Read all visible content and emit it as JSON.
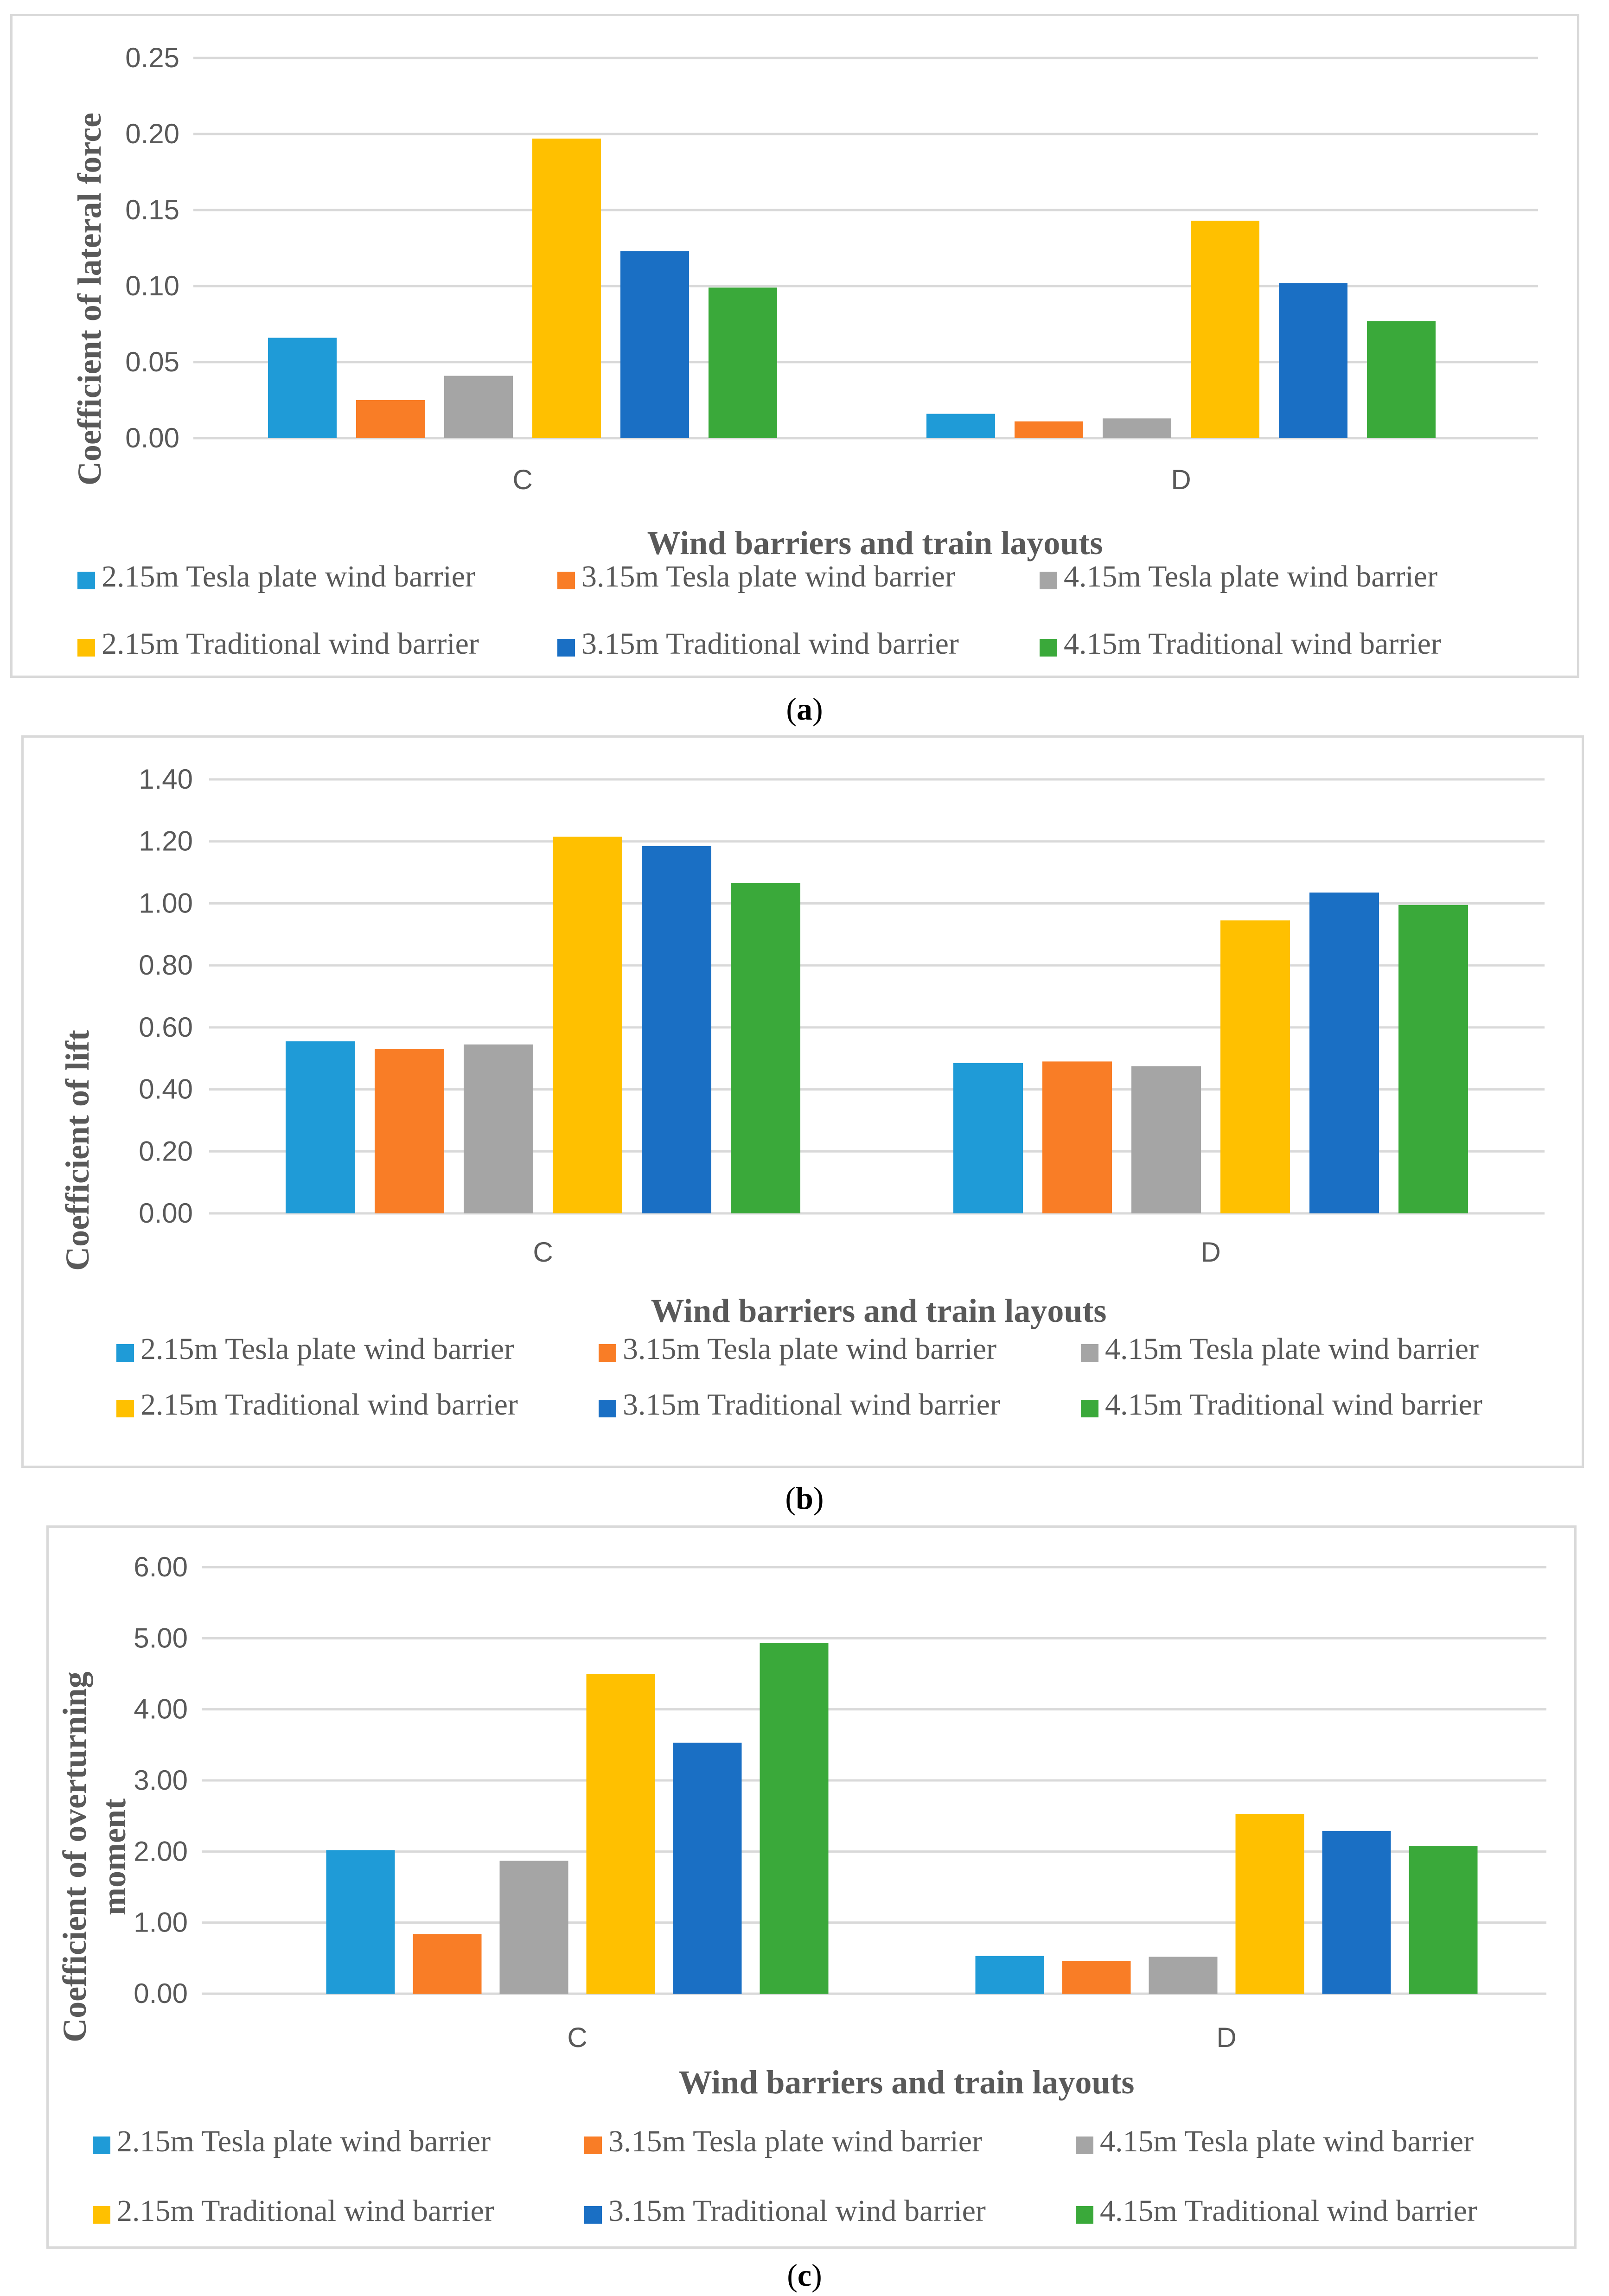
{
  "chart_data": [
    {
      "type": "bar",
      "panel": "a",
      "categories": [
        "C",
        "D"
      ],
      "ylabel": "Coefficient of lateral force",
      "xlabel": "Wind barriers and train layouts",
      "ylim": [
        0,
        0.25
      ],
      "yticks": [
        "0.00",
        "0.05",
        "0.10",
        "0.15",
        "0.20",
        "0.25"
      ],
      "series": [
        {
          "name": "2.15m Tesla plate wind barrier",
          "color": "#1f9bd7",
          "values": [
            0.066,
            0.016
          ]
        },
        {
          "name": "3.15m Tesla plate wind barrier",
          "color": "#f97d26",
          "values": [
            0.025,
            0.011
          ]
        },
        {
          "name": "4.15m Tesla plate wind barrier",
          "color": "#a5a5a5",
          "values": [
            0.041,
            0.013
          ]
        },
        {
          "name": "2.15m Traditional wind barrier",
          "color": "#ffc000",
          "values": [
            0.197,
            0.143
          ]
        },
        {
          "name": "3.15m Traditional wind barrier",
          "color": "#1a6fc4",
          "values": [
            0.123,
            0.102
          ]
        },
        {
          "name": "4.15m Traditional wind barrier",
          "color": "#3aa93a",
          "values": [
            0.099,
            0.077
          ]
        }
      ],
      "caption": "a"
    },
    {
      "type": "bar",
      "panel": "b",
      "categories": [
        "C",
        "D"
      ],
      "ylabel": "Coefficient of lift",
      "xlabel": "Wind barriers and train layouts",
      "ylim": [
        0,
        1.4
      ],
      "yticks": [
        "0.00",
        "0.20",
        "0.40",
        "0.60",
        "0.80",
        "1.00",
        "1.20",
        "1.40"
      ],
      "series": [
        {
          "name": "2.15m Tesla plate wind barrier",
          "color": "#1f9bd7",
          "values": [
            0.555,
            0.485
          ]
        },
        {
          "name": "3.15m Tesla plate wind barrier",
          "color": "#f97d26",
          "values": [
            0.53,
            0.49
          ]
        },
        {
          "name": "4.15m Tesla plate wind barrier",
          "color": "#a5a5a5",
          "values": [
            0.545,
            0.475
          ]
        },
        {
          "name": "2.15m Traditional wind barrier",
          "color": "#ffc000",
          "values": [
            1.215,
            0.945
          ]
        },
        {
          "name": "3.15m Traditional wind barrier",
          "color": "#1a6fc4",
          "values": [
            1.185,
            1.035
          ]
        },
        {
          "name": "4.15m Traditional wind barrier",
          "color": "#3aa93a",
          "values": [
            1.065,
            0.995
          ]
        }
      ],
      "caption": "b"
    },
    {
      "type": "bar",
      "panel": "c",
      "categories": [
        "C",
        "D"
      ],
      "ylabel_line1": "Coefficient of overturning",
      "ylabel_line2": "moment",
      "xlabel": "Wind barriers and train layouts",
      "ylim": [
        0,
        6
      ],
      "yticks": [
        "0.00",
        "1.00",
        "2.00",
        "3.00",
        "4.00",
        "5.00",
        "6.00"
      ],
      "series": [
        {
          "name": "2.15m Tesla plate wind barrier",
          "color": "#1f9bd7",
          "values": [
            2.02,
            0.53
          ]
        },
        {
          "name": "3.15m Tesla plate wind barrier",
          "color": "#f97d26",
          "values": [
            0.84,
            0.46
          ]
        },
        {
          "name": "4.15m Tesla plate wind barrier",
          "color": "#a5a5a5",
          "values": [
            1.87,
            0.52
          ]
        },
        {
          "name": "2.15m Traditional wind barrier",
          "color": "#ffc000",
          "values": [
            4.5,
            2.53
          ]
        },
        {
          "name": "3.15m Traditional wind barrier",
          "color": "#1a6fc4",
          "values": [
            3.53,
            2.29
          ]
        },
        {
          "name": "4.15m Traditional wind barrier",
          "color": "#3aa93a",
          "values": [
            4.93,
            2.08
          ]
        }
      ],
      "caption": "c"
    }
  ]
}
